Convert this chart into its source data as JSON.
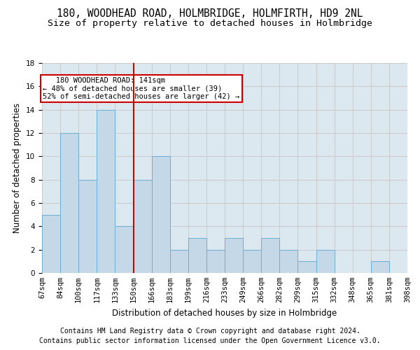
{
  "title1": "180, WOODHEAD ROAD, HOLMBRIDGE, HOLMFIRTH, HD9 2NL",
  "title2": "Size of property relative to detached houses in Holmbridge",
  "xlabel": "Distribution of detached houses by size in Holmbridge",
  "ylabel": "Number of detached properties",
  "footnote1": "Contains HM Land Registry data © Crown copyright and database right 2024.",
  "footnote2": "Contains public sector information licensed under the Open Government Licence v3.0.",
  "annotation_line1": "   180 WOODHEAD ROAD: 141sqm",
  "annotation_line2": "← 48% of detached houses are smaller (39)",
  "annotation_line3": "52% of semi-detached houses are larger (42) →",
  "bar_values": [
    5,
    12,
    8,
    14,
    4,
    8,
    10,
    2,
    3,
    2,
    3,
    2,
    3,
    2,
    1,
    2,
    0,
    0,
    1,
    0
  ],
  "bin_labels": [
    "67sqm",
    "84sqm",
    "100sqm",
    "117sqm",
    "133sqm",
    "150sqm",
    "166sqm",
    "183sqm",
    "199sqm",
    "216sqm",
    "233sqm",
    "249sqm",
    "266sqm",
    "282sqm",
    "299sqm",
    "315sqm",
    "332sqm",
    "348sqm",
    "365sqm",
    "381sqm",
    "398sqm"
  ],
  "bar_color": "#c5d8e8",
  "bar_edge_color": "#6aafd6",
  "vline_color": "#cc0000",
  "annotation_box_edge": "#cc0000",
  "ylim": [
    0,
    18
  ],
  "yticks": [
    0,
    2,
    4,
    6,
    8,
    10,
    12,
    14,
    16,
    18
  ],
  "grid_color": "#cccccc",
  "bg_color": "#dce8f0",
  "title1_fontsize": 10.5,
  "title2_fontsize": 9.5,
  "axis_label_fontsize": 8.5,
  "tick_fontsize": 7.5,
  "footnote_fontsize": 7.0,
  "vline_x_data": 4.5
}
